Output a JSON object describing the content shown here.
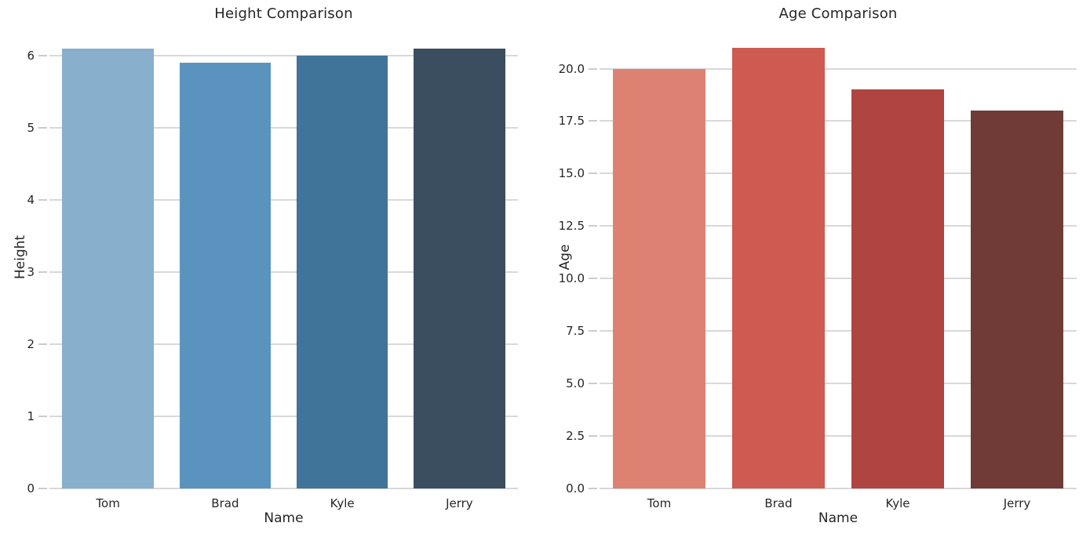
{
  "figure": {
    "background": "#ffffff",
    "text_color": "#262626",
    "grid_color": "#d8d8d8"
  },
  "chart_data": [
    {
      "type": "bar",
      "title": "Height Comparison",
      "xlabel": "Name",
      "ylabel": "Height",
      "categories": [
        "Tom",
        "Brad",
        "Kyle",
        "Jerry"
      ],
      "values": [
        6.1,
        5.9,
        6.0,
        6.1
      ],
      "ylim": [
        0,
        6.4
      ],
      "yticks": [
        0,
        1,
        2,
        3,
        4,
        5,
        6
      ],
      "ytick_labels": [
        "0",
        "1",
        "2",
        "3",
        "4",
        "5",
        "6"
      ],
      "bar_colors": [
        "#88AFCB",
        "#5B93BF",
        "#407499",
        "#3A4E60"
      ],
      "grid": "horizontal",
      "legend": "none"
    },
    {
      "type": "bar",
      "title": "Age Comparison",
      "xlabel": "Name",
      "ylabel": "Age",
      "categories": [
        "Tom",
        "Brad",
        "Kyle",
        "Jerry"
      ],
      "values": [
        20,
        21,
        19,
        18
      ],
      "ylim": [
        0,
        22
      ],
      "yticks": [
        0,
        2.5,
        5,
        7.5,
        10,
        12.5,
        15,
        17.5,
        20
      ],
      "ytick_labels": [
        "0.0",
        "2.5",
        "5.0",
        "7.5",
        "10.0",
        "12.5",
        "15.0",
        "17.5",
        "20.0"
      ],
      "bar_colors": [
        "#DD8273",
        "#CE5B51",
        "#AF4440",
        "#703A37"
      ],
      "grid": "horizontal",
      "legend": "none"
    }
  ]
}
